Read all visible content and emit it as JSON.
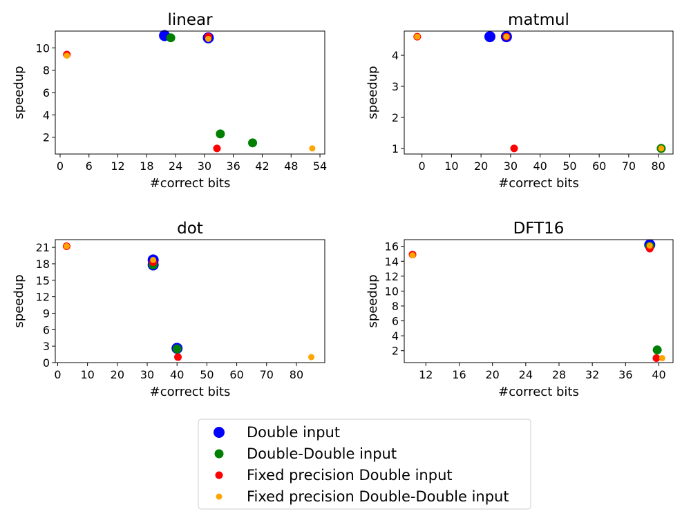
{
  "series_meta": [
    {
      "name": "Double input",
      "color": "#0000ff"
    },
    {
      "name": "Double-Double input",
      "color": "#008000"
    },
    {
      "name": "Fixed precision Double input",
      "color": "#ff0000"
    },
    {
      "name": "Fixed precision Double-Double input",
      "color": "#ffa500"
    }
  ],
  "legend": {
    "placement": "lower-center"
  },
  "chart_data": [
    {
      "type": "scatter",
      "title": "linear",
      "xlabel": "#correct bits",
      "ylabel": "speedup",
      "xlim": [
        -1,
        55
      ],
      "ylim": [
        0.5,
        11.5
      ],
      "xticks": [
        0,
        6,
        12,
        18,
        24,
        30,
        36,
        42,
        48,
        54
      ],
      "yticks": [
        2,
        4,
        6,
        8,
        10
      ],
      "series": [
        {
          "name": "Double input",
          "points": [
            [
              21.7,
              11.1
            ],
            [
              30.8,
              10.9
            ]
          ]
        },
        {
          "name": "Double-Double input",
          "points": [
            [
              23.0,
              10.9
            ],
            [
              33.3,
              2.3
            ],
            [
              40.0,
              1.5
            ]
          ]
        },
        {
          "name": "Fixed precision Double input",
          "points": [
            [
              1.4,
              9.4
            ],
            [
              30.8,
              11.0
            ],
            [
              32.6,
              1.0
            ]
          ]
        },
        {
          "name": "Fixed precision Double-Double input",
          "points": [
            [
              1.4,
              9.3
            ],
            [
              30.8,
              10.8
            ],
            [
              52.4,
              1.0
            ]
          ]
        }
      ]
    },
    {
      "type": "scatter",
      "title": "matmul",
      "xlabel": "#correct bits",
      "ylabel": "speedup",
      "xlim": [
        -6,
        85
      ],
      "ylim": [
        0.82,
        4.78
      ],
      "xticks": [
        0,
        10,
        20,
        30,
        40,
        50,
        60,
        70,
        80
      ],
      "yticks": [
        1,
        2,
        3,
        4
      ],
      "series": [
        {
          "name": "Double input",
          "points": [
            [
              23.0,
              4.6
            ],
            [
              28.6,
              4.6
            ]
          ]
        },
        {
          "name": "Double-Double input",
          "points": [
            [
              81.0,
              1.0
            ]
          ]
        },
        {
          "name": "Fixed precision Double input",
          "points": [
            [
              -1.6,
              4.6
            ],
            [
              28.6,
              4.6
            ],
            [
              31.2,
              1.0
            ]
          ]
        },
        {
          "name": "Fixed precision Double-Double input",
          "points": [
            [
              -1.6,
              4.6
            ],
            [
              28.6,
              4.6
            ],
            [
              81.0,
              1.0
            ]
          ]
        }
      ]
    },
    {
      "type": "scatter",
      "title": "dot",
      "xlabel": "#correct bits",
      "ylabel": "speedup",
      "xlim": [
        -0.8,
        89.5
      ],
      "ylim": [
        0,
        22.4
      ],
      "xticks": [
        0,
        10,
        20,
        30,
        40,
        50,
        60,
        70,
        80
      ],
      "yticks": [
        0,
        3,
        6,
        9,
        12,
        15,
        18,
        21
      ],
      "series": [
        {
          "name": "Double input",
          "points": [
            [
              32.0,
              17.8
            ],
            [
              32.0,
              18.7
            ],
            [
              40.0,
              2.6
            ]
          ]
        },
        {
          "name": "Double-Double input",
          "points": [
            [
              32.0,
              17.8
            ],
            [
              40.0,
              2.5
            ]
          ]
        },
        {
          "name": "Fixed precision Double input",
          "points": [
            [
              3.0,
              21.2
            ],
            [
              32.0,
              18.3
            ],
            [
              40.3,
              1.0
            ]
          ]
        },
        {
          "name": "Fixed precision Double-Double input",
          "points": [
            [
              3.0,
              21.2
            ],
            [
              32.0,
              18.7
            ],
            [
              85.0,
              1.0
            ]
          ]
        }
      ]
    },
    {
      "type": "scatter",
      "title": "DFT16",
      "xlabel": "#correct bits",
      "ylabel": "speedup",
      "xlim": [
        9.4,
        41.7
      ],
      "ylim": [
        0.4,
        16.9
      ],
      "xticks": [
        12,
        16,
        20,
        24,
        28,
        32,
        36,
        40
      ],
      "yticks": [
        2,
        4,
        6,
        8,
        10,
        12,
        14,
        16
      ],
      "series": [
        {
          "name": "Double input",
          "points": [
            [
              38.9,
              16.2
            ]
          ]
        },
        {
          "name": "Double-Double input",
          "points": [
            [
              38.9,
              16.0
            ],
            [
              39.8,
              2.1
            ]
          ]
        },
        {
          "name": "Fixed precision Double input",
          "points": [
            [
              10.4,
              14.9
            ],
            [
              38.9,
              15.7
            ],
            [
              39.7,
              1.0
            ]
          ]
        },
        {
          "name": "Fixed precision Double-Double input",
          "points": [
            [
              10.4,
              14.8
            ],
            [
              38.9,
              16.1
            ],
            [
              40.4,
              1.0
            ]
          ]
        }
      ]
    }
  ]
}
